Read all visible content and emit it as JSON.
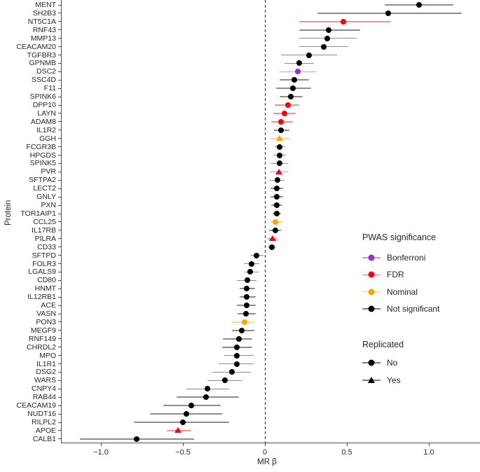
{
  "figure": {
    "xlabel": "MR β",
    "ylabel": "Protein",
    "x_ticks": [
      {
        "label": "−1.0",
        "value": -1.0
      },
      {
        "label": "−0.5",
        "value": -0.5
      },
      {
        "label": "0",
        "value": 0.0
      },
      {
        "label": "0.5",
        "value": 0.5
      },
      {
        "label": "1.0",
        "value": 1.0
      }
    ]
  },
  "colors": {
    "bonferroni": "#9130d9",
    "fdr": "#fb0006",
    "nominal": "#ffa400",
    "not_significant": "#000000"
  },
  "legend": {
    "significance_title": "PWAS significance",
    "significance_items": [
      {
        "label": "Bonferroni",
        "color_key": "bonferroni",
        "shape": "circle"
      },
      {
        "label": "FDR",
        "color_key": "fdr",
        "shape": "circle"
      },
      {
        "label": "Nominal",
        "color_key": "nominal",
        "shape": "circle"
      },
      {
        "label": "Not significant",
        "color_key": "not_significant",
        "shape": "circle"
      }
    ],
    "replicated_title": "Replicated",
    "replicated_items": [
      {
        "label": "No",
        "shape": "circle"
      },
      {
        "label": "Yes",
        "shape": "triangle"
      }
    ]
  },
  "chart_data": {
    "type": "scatter",
    "subtype": "forest-dot-plot-with-error-bars",
    "title": "",
    "xlabel": "MR β",
    "ylabel": "Protein",
    "xlim": [
      -1.24,
      1.3
    ],
    "grid": false,
    "reference_line_x": 0,
    "legend_position": "right-middle",
    "points": [
      {
        "protein": "MENT",
        "beta": 0.94,
        "ci_low": 0.73,
        "ci_high": 1.15,
        "significance": "not_significant",
        "replicated": false
      },
      {
        "protein": "SH2B3",
        "beta": 0.75,
        "ci_low": 0.32,
        "ci_high": 1.2,
        "significance": "not_significant",
        "replicated": false
      },
      {
        "protein": "NT5C1A",
        "beta": 0.48,
        "ci_low": 0.21,
        "ci_high": 0.77,
        "significance": "fdr",
        "replicated": false
      },
      {
        "protein": "RNF43",
        "beta": 0.39,
        "ci_low": 0.21,
        "ci_high": 0.58,
        "significance": "not_significant",
        "replicated": false
      },
      {
        "protein": "MMP13",
        "beta": 0.38,
        "ci_low": 0.21,
        "ci_high": 0.56,
        "significance": "not_significant",
        "replicated": false
      },
      {
        "protein": "CEACAM20",
        "beta": 0.36,
        "ci_low": 0.21,
        "ci_high": 0.51,
        "significance": "not_significant",
        "replicated": false
      },
      {
        "protein": "TGFBR3",
        "beta": 0.27,
        "ci_low": 0.1,
        "ci_high": 0.44,
        "significance": "not_significant",
        "replicated": false
      },
      {
        "protein": "GPNMB",
        "beta": 0.21,
        "ci_low": 0.12,
        "ci_high": 0.3,
        "significance": "not_significant",
        "replicated": false
      },
      {
        "protein": "DSC2",
        "beta": 0.2,
        "ci_low": 0.09,
        "ci_high": 0.31,
        "significance": "bonferroni",
        "replicated": false
      },
      {
        "protein": "SSC4D",
        "beta": 0.18,
        "ci_low": 0.09,
        "ci_high": 0.27,
        "significance": "not_significant",
        "replicated": false
      },
      {
        "protein": "F11",
        "beta": 0.17,
        "ci_low": 0.07,
        "ci_high": 0.28,
        "significance": "not_significant",
        "replicated": false
      },
      {
        "protein": "SPINK6",
        "beta": 0.16,
        "ci_low": 0.09,
        "ci_high": 0.23,
        "significance": "not_significant",
        "replicated": false
      },
      {
        "protein": "DPP10",
        "beta": 0.14,
        "ci_low": 0.06,
        "ci_high": 0.21,
        "significance": "fdr",
        "replicated": false
      },
      {
        "protein": "LAYN",
        "beta": 0.12,
        "ci_low": 0.05,
        "ci_high": 0.19,
        "significance": "fdr",
        "replicated": false
      },
      {
        "protein": "ADAM8",
        "beta": 0.1,
        "ci_low": 0.04,
        "ci_high": 0.17,
        "significance": "fdr",
        "replicated": false
      },
      {
        "protein": "IL1R2",
        "beta": 0.1,
        "ci_low": 0.055,
        "ci_high": 0.15,
        "significance": "not_significant",
        "replicated": false
      },
      {
        "protein": "GGH",
        "beta": 0.09,
        "ci_low": 0.03,
        "ci_high": 0.15,
        "significance": "nominal",
        "replicated": true
      },
      {
        "protein": "FCGR3B",
        "beta": 0.09,
        "ci_low": 0.06,
        "ci_high": 0.125,
        "significance": "not_significant",
        "replicated": false
      },
      {
        "protein": "HPGDS",
        "beta": 0.09,
        "ci_low": 0.05,
        "ci_high": 0.13,
        "significance": "not_significant",
        "replicated": false
      },
      {
        "protein": "SPINK5",
        "beta": 0.09,
        "ci_low": 0.04,
        "ci_high": 0.14,
        "significance": "not_significant",
        "replicated": false
      },
      {
        "protein": "PVR",
        "beta": 0.085,
        "ci_low": 0.03,
        "ci_high": 0.14,
        "significance": "fdr",
        "replicated": true
      },
      {
        "protein": "SFTPA2",
        "beta": 0.075,
        "ci_low": 0.03,
        "ci_high": 0.12,
        "significance": "not_significant",
        "replicated": false
      },
      {
        "protein": "LECT2",
        "beta": 0.073,
        "ci_low": 0.035,
        "ci_high": 0.112,
        "significance": "not_significant",
        "replicated": false
      },
      {
        "protein": "GNLY",
        "beta": 0.072,
        "ci_low": 0.033,
        "ci_high": 0.112,
        "significance": "not_significant",
        "replicated": false
      },
      {
        "protein": "PXN",
        "beta": 0.072,
        "ci_low": 0.04,
        "ci_high": 0.105,
        "significance": "not_significant",
        "replicated": false
      },
      {
        "protein": "TOR1AIP1",
        "beta": 0.072,
        "ci_low": 0.045,
        "ci_high": 0.1,
        "significance": "not_significant",
        "replicated": false
      },
      {
        "protein": "CCL25",
        "beta": 0.065,
        "ci_low": 0.03,
        "ci_high": 0.105,
        "significance": "nominal",
        "replicated": false
      },
      {
        "protein": "IL17RB",
        "beta": 0.063,
        "ci_low": 0.026,
        "ci_high": 0.1,
        "significance": "not_significant",
        "replicated": false
      },
      {
        "protein": "PILRA",
        "beta": 0.045,
        "ci_low": 0.016,
        "ci_high": 0.073,
        "significance": "fdr",
        "replicated": true
      },
      {
        "protein": "CD33",
        "beta": 0.044,
        "ci_low": 0.018,
        "ci_high": 0.07,
        "significance": "not_significant",
        "replicated": false
      },
      {
        "protein": "SFTPD",
        "beta": -0.05,
        "ci_low": -0.09,
        "ci_high": -0.01,
        "significance": "not_significant",
        "replicated": false
      },
      {
        "protein": "FOLR3",
        "beta": -0.08,
        "ci_low": -0.13,
        "ci_high": -0.035,
        "significance": "not_significant",
        "replicated": false
      },
      {
        "protein": "LGALS9",
        "beta": -0.09,
        "ci_low": -0.125,
        "ci_high": -0.04,
        "significance": "not_significant",
        "replicated": false
      },
      {
        "protein": "CD80",
        "beta": -0.105,
        "ci_low": -0.17,
        "ci_high": -0.05,
        "significance": "not_significant",
        "replicated": false
      },
      {
        "protein": "HNMT",
        "beta": -0.11,
        "ci_low": -0.155,
        "ci_high": -0.06,
        "significance": "not_significant",
        "replicated": false
      },
      {
        "protein": "IL12RB1",
        "beta": -0.112,
        "ci_low": -0.155,
        "ci_high": -0.056,
        "significance": "not_significant",
        "replicated": false
      },
      {
        "protein": "ACE",
        "beta": -0.112,
        "ci_low": -0.17,
        "ci_high": -0.055,
        "significance": "not_significant",
        "replicated": false
      },
      {
        "protein": "VASN",
        "beta": -0.115,
        "ci_low": -0.165,
        "ci_high": -0.054,
        "significance": "not_significant",
        "replicated": false
      },
      {
        "protein": "PON3",
        "beta": -0.123,
        "ci_low": -0.2,
        "ci_high": -0.063,
        "significance": "nominal",
        "replicated": false
      },
      {
        "protein": "MEGF9",
        "beta": -0.14,
        "ci_low": -0.2,
        "ci_high": -0.065,
        "significance": "not_significant",
        "replicated": false
      },
      {
        "protein": "RNF149",
        "beta": -0.16,
        "ci_low": -0.255,
        "ci_high": -0.077,
        "significance": "not_significant",
        "replicated": false
      },
      {
        "protein": "CHRDL2",
        "beta": -0.17,
        "ci_low": -0.26,
        "ci_high": -0.077,
        "significance": "not_significant",
        "replicated": false
      },
      {
        "protein": "MPO",
        "beta": -0.17,
        "ci_low": -0.25,
        "ci_high": -0.07,
        "significance": "not_significant",
        "replicated": false
      },
      {
        "protein": "IL1R1",
        "beta": -0.172,
        "ci_low": -0.28,
        "ci_high": -0.067,
        "significance": "not_significant",
        "replicated": false
      },
      {
        "protein": "DSG2",
        "beta": -0.2,
        "ci_low": -0.32,
        "ci_high": -0.084,
        "significance": "not_significant",
        "replicated": false
      },
      {
        "protein": "WARS",
        "beta": -0.245,
        "ci_low": -0.35,
        "ci_high": -0.14,
        "significance": "not_significant",
        "replicated": false
      },
      {
        "protein": "CNPY4",
        "beta": -0.35,
        "ci_low": -0.48,
        "ci_high": -0.22,
        "significance": "not_significant",
        "replicated": false
      },
      {
        "protein": "RAB44",
        "beta": -0.36,
        "ci_low": -0.54,
        "ci_high": -0.16,
        "significance": "not_significant",
        "replicated": false
      },
      {
        "protein": "CEACAM19",
        "beta": -0.45,
        "ci_low": -0.62,
        "ci_high": -0.27,
        "significance": "not_significant",
        "replicated": false
      },
      {
        "protein": "NUDT16",
        "beta": -0.48,
        "ci_low": -0.7,
        "ci_high": -0.26,
        "significance": "not_significant",
        "replicated": false
      },
      {
        "protein": "RILPL2",
        "beta": -0.5,
        "ci_low": -0.8,
        "ci_high": -0.22,
        "significance": "not_significant",
        "replicated": false
      },
      {
        "protein": "APOE",
        "beta": -0.53,
        "ci_low": -0.6,
        "ci_high": -0.45,
        "significance": "fdr",
        "replicated": true
      },
      {
        "protein": "CALB1",
        "beta": -0.78,
        "ci_low": -1.13,
        "ci_high": -0.43,
        "significance": "not_significant",
        "replicated": false
      }
    ]
  }
}
